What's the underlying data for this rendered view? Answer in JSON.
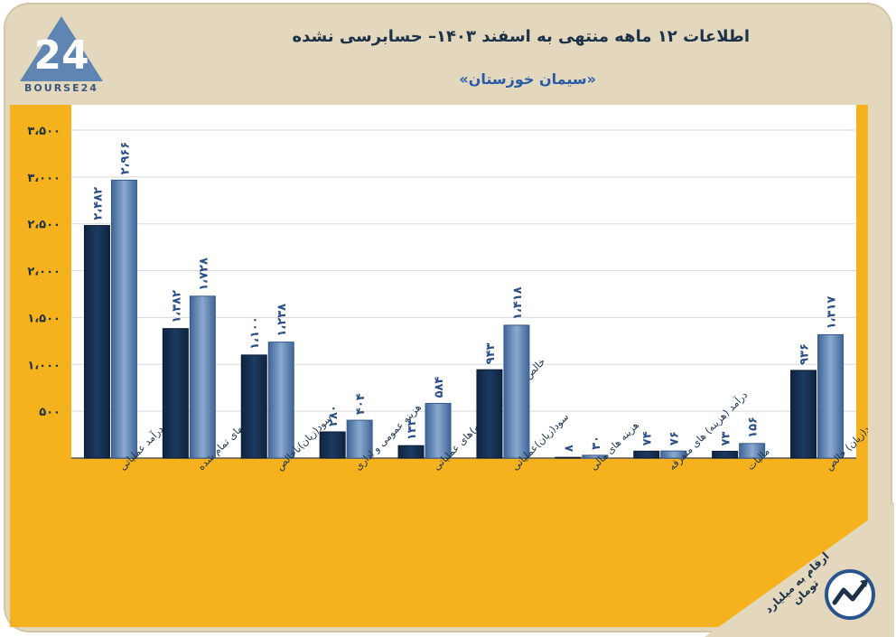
{
  "header": {
    "title": "اطلاعات ۱۲ ماهه منتهی به اسفند ۱۴۰۳– حسابرسی نشده",
    "subtitle": "«سیمان خوزستان»",
    "logo_text": "BOURSE24",
    "unit_note": "ارقام به میلیارد تومان"
  },
  "colors": {
    "background": "#e3d8bd",
    "plot_panel": "#f6b21d",
    "plot_area": "#ffffff",
    "series_prev": "#1c3a63",
    "series_curr": "#5d82b4",
    "grid": "#d9d9d9"
  },
  "icons": {
    "logo": "bourse24-logo",
    "trend": "trend-line-icon"
  },
  "chart_data": {
    "type": "bar",
    "categories": [
      "درآمد عملیاتی",
      "بهای تمام شده",
      "سود(زیان)ناخالص",
      "هزینه عمومی و اداری",
      "خالص سایر درآمد(هزینه)های عملیاتی",
      "سود(زیان)عملیاتی",
      "هزینه های مالی",
      "درآمد (هزینه) های متفرقه",
      "مالیات",
      "سود(زیان) خالص"
    ],
    "series": [
      {
        "values": [
          2482,
          1382,
          1100,
          280,
          133,
          943,
          8,
          74,
          73,
          936
        ]
      },
      {
        "values": [
          2966,
          1728,
          1238,
          404,
          584,
          1418,
          30,
          76,
          156,
          1317
        ]
      }
    ],
    "value_labels": [
      [
        "۲،۴۸۲",
        "۱،۳۸۲",
        "۱،۱۰۰",
        "۲۸۰",
        "۱۳۳",
        "۹۴۳",
        "۸",
        "۷۴",
        "۷۳",
        "۹۳۶"
      ],
      [
        "۲،۹۶۶",
        "۱،۷۲۸",
        "۱،۲۳۸",
        "۴۰۴",
        "۵۸۴",
        "۱،۴۱۸",
        "۳۰",
        "۷۶",
        "۱۵۶",
        "۱،۳۱۷"
      ]
    ],
    "yticks": [
      "۳،۵۰۰",
      "۳،۰۰۰",
      "۲،۵۰۰",
      "۲،۰۰۰",
      "۱،۵۰۰",
      "۱،۰۰۰",
      "۵۰۰"
    ],
    "ytick_values": [
      3500,
      3000,
      2500,
      2000,
      1500,
      1000,
      500
    ],
    "ylim": [
      0,
      3500
    ],
    "grid": true
  }
}
